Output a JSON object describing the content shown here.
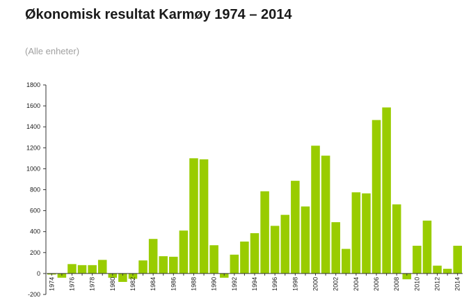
{
  "chart_data": {
    "type": "bar",
    "title": "Økonomisk resultat Karmøy 1974 – 2014",
    "subtitle": "(Alle enheter)",
    "xlabel": "",
    "ylabel": "",
    "ylim": [
      -200,
      1800
    ],
    "yticks": [
      -200,
      0,
      200,
      400,
      600,
      800,
      1000,
      1200,
      1400,
      1600,
      1800
    ],
    "bar_color": "#99cc00",
    "categories": [
      "1974",
      "1975",
      "1976",
      "1977",
      "1978",
      "1979",
      "1980",
      "1981",
      "1982",
      "1983",
      "1984",
      "1985",
      "1986",
      "1987",
      "1988",
      "1989",
      "1990",
      "1991",
      "1992",
      "1993",
      "1994",
      "1995",
      "1996",
      "1997",
      "1998",
      "1999",
      "2000",
      "2001",
      "2002",
      "2003",
      "2004",
      "2005",
      "2006",
      "2007",
      "2008",
      "2009",
      "2010",
      "2011",
      "2012",
      "2013",
      "2014"
    ],
    "x_tick_labels": [
      "1974",
      "1976",
      "1978",
      "1980",
      "1982",
      "1984",
      "1986",
      "1988",
      "1990",
      "1992",
      "1994",
      "1996",
      "1998",
      "2000",
      "2002",
      "2004",
      "2006",
      "2008",
      "2010",
      "2012",
      "2014"
    ],
    "values": [
      -10,
      -40,
      90,
      80,
      80,
      130,
      -40,
      -80,
      -50,
      125,
      330,
      165,
      160,
      410,
      1100,
      1090,
      270,
      -40,
      180,
      305,
      385,
      785,
      455,
      560,
      885,
      640,
      1220,
      1125,
      490,
      235,
      775,
      765,
      1465,
      1585,
      660,
      -55,
      265,
      505,
      75,
      45,
      265
    ]
  }
}
